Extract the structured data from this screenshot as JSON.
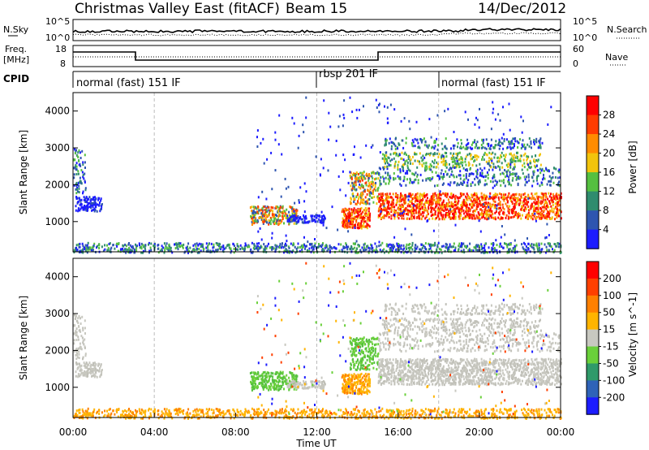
{
  "header": {
    "station": "Christmas Valley East (fitACF)",
    "beam": "Beam 15",
    "date": "14/Dec/2012"
  },
  "panels": {
    "nsky_label": "N.Sky",
    "nsky_ticks": [
      "10^5",
      "10^0"
    ],
    "nsearch_label": "N.Search",
    "nsearch_ticks": [
      "10^5",
      "10^0"
    ],
    "freq_label_1": "Freq.",
    "freq_label_2": "[MHz]",
    "freq_ticks": [
      "18",
      "8"
    ],
    "nave_label": "Nave",
    "nave_ticks": [
      "60",
      "0"
    ],
    "cpid_label": "CPID",
    "cpid_segments": [
      {
        "name": "normal (fast) 151 IF",
        "start_hour": 0,
        "end_hour": 12
      },
      {
        "name": "rbsp 201 IF",
        "start_hour": 12,
        "end_hour": 18
      },
      {
        "name": "normal (fast) 151 IF",
        "start_hour": 18,
        "end_hour": 24
      }
    ]
  },
  "chart_data": [
    {
      "type": "heatmap",
      "name": "power",
      "ylabel": "Slant Range [km]",
      "ylim": [
        180,
        4500
      ],
      "yticks": [
        "1000",
        "2000",
        "3000",
        "4000"
      ],
      "colorbar_label": "Power [dB]",
      "colorbar_ticks": [
        "4",
        "8",
        "12",
        "16",
        "20",
        "24",
        "28"
      ],
      "colorbar_colors": [
        "#1c1cff",
        "#2e55b0",
        "#2f8c6e",
        "#55c040",
        "#f2c40c",
        "#ff8c00",
        "#ff3c00",
        "#ff0000"
      ]
    },
    {
      "type": "heatmap",
      "name": "velocity",
      "ylabel": "Slant Range [km]",
      "ylim": [
        180,
        4500
      ],
      "yticks": [
        "1000",
        "2000",
        "3000",
        "4000"
      ],
      "colorbar_label": "Velocity [m s^-1]",
      "colorbar_ticks": [
        "200",
        "100",
        "50",
        "15",
        "-15",
        "-50",
        "-100",
        "-200"
      ],
      "colorbar_colors": [
        "#1c1cff",
        "#2f63b8",
        "#2f9a6a",
        "#6ad03a",
        "#c8c8c0",
        "#ffb400",
        "#ff8000",
        "#ff4000",
        "#ff0000"
      ]
    }
  ],
  "xaxis": {
    "xlabel": "Time UT",
    "xticks": [
      "00:00",
      "04:00",
      "08:00",
      "12:00",
      "16:00",
      "20:00",
      "00:00"
    ]
  }
}
